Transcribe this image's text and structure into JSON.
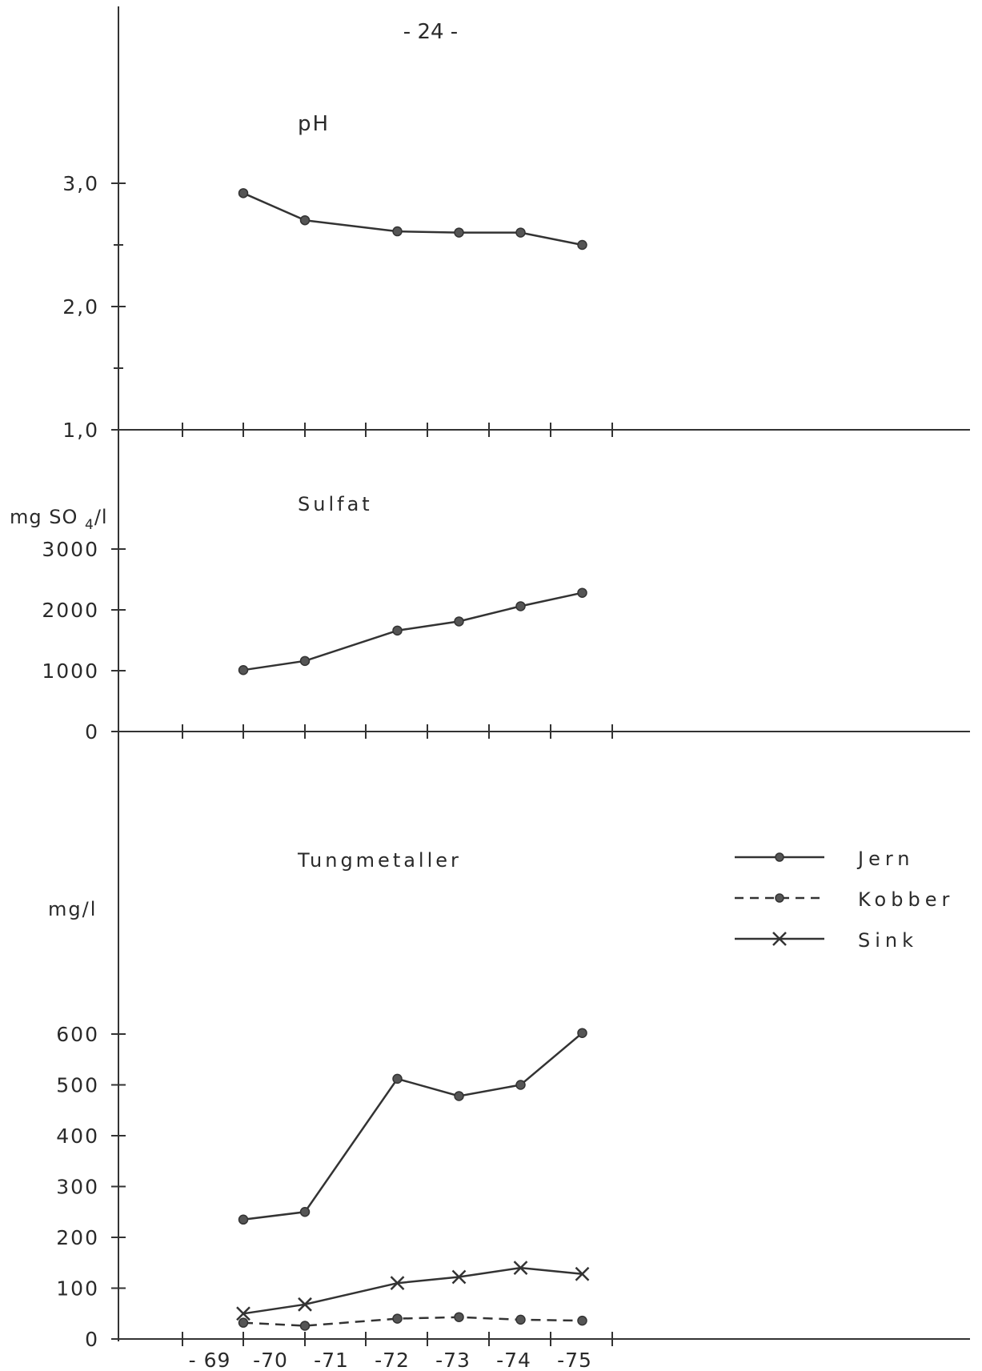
{
  "page_number": "- 24 -",
  "x_tick_labels": [
    "- 69",
    "-70",
    "-71",
    "-72",
    "-73",
    "-74",
    "-75"
  ],
  "legend": [
    "Jern",
    "Kobber",
    "Sink"
  ],
  "chart_data": [
    {
      "type": "line",
      "title": "pH",
      "ylabel": "",
      "ylim": [
        1.0,
        3.0
      ],
      "y_tick_labels": [
        "3,0",
        "2,0",
        "1,0"
      ],
      "x": [
        1969,
        1970,
        1971.5,
        1972.5,
        1973.5,
        1974.5
      ],
      "series": [
        {
          "values": [
            2.92,
            2.7,
            2.61,
            2.6,
            2.6,
            2.5
          ]
        }
      ]
    },
    {
      "type": "line",
      "title": "Sulfat",
      "ylabel": "mg SO4/l",
      "ylim": [
        0,
        3000
      ],
      "y_tick_labels": [
        "3000",
        "2000",
        "1000",
        "0"
      ],
      "x": [
        1969,
        1970,
        1971.5,
        1972.5,
        1973.5,
        1974.5
      ],
      "series": [
        {
          "values": [
            1010,
            1160,
            1660,
            1810,
            2060,
            2280
          ]
        }
      ]
    },
    {
      "type": "line",
      "title": "Tungmetaller",
      "ylabel": "mg/l",
      "ylim": [
        0,
        600
      ],
      "y_tick_labels": [
        "600",
        "500",
        "400",
        "300",
        "200",
        "100",
        "0"
      ],
      "x": [
        1969,
        1970,
        1971.5,
        1972.5,
        1973.5,
        1974.5
      ],
      "series": [
        {
          "name": "Jern",
          "values": [
            235,
            250,
            512,
            478,
            500,
            602
          ]
        },
        {
          "name": "Kobber",
          "values": [
            32,
            26,
            40,
            43,
            38,
            36
          ]
        },
        {
          "name": "Sink",
          "values": [
            50,
            68,
            110,
            122,
            140,
            128
          ]
        }
      ]
    }
  ]
}
